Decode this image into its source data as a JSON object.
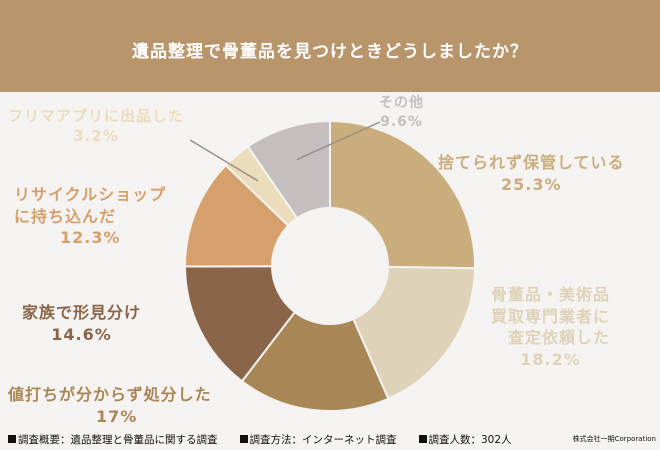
{
  "chart_data": {
    "type": "pie",
    "title": "遺品整理で骨董品を見つけときどうしましたか？",
    "slices": [
      {
        "label": "捨てられず保管している",
        "value": 25.3,
        "value_label": "25.3%",
        "color": "#c9ad7d"
      },
      {
        "label": "骨董品・美術品買取専門業者に査定依頼した",
        "value": 18.2,
        "value_label": "18.2%",
        "color": "#ded2b8"
      },
      {
        "label": "値打ちが分からず処分した",
        "value": 17,
        "value_label": "17%",
        "color": "#a98656"
      },
      {
        "label": "家族で形見分け",
        "value": 14.6,
        "value_label": "14.6%",
        "color": "#8b6549"
      },
      {
        "label": "リサイクルショップに持ち込んだ",
        "value": 12.3,
        "value_label": "12.3%",
        "color": "#d6a06c"
      },
      {
        "label": "フリマアプリに出品した",
        "value": 3.2,
        "value_label": "3.2%",
        "color": "#ebdcbb"
      },
      {
        "label": "その他",
        "value": 9.6,
        "value_label": "9.6%",
        "color": "#c4bebf"
      }
    ]
  },
  "labels": {
    "hold": {
      "l1": "捨てられず保管している",
      "pct": "25.3%"
    },
    "appraise": {
      "l1": "骨董品・美術品",
      "l2": "買取専門業者に",
      "l3": "査定依頼した",
      "pct": "18.2%"
    },
    "dispose": {
      "l1": "値打ちが分からず処分した",
      "pct": "17%"
    },
    "family": {
      "l1": "家族で形見分け",
      "pct": "14.6%"
    },
    "recycle": {
      "l1": "リサイクルショップ",
      "l2": "に持ち込んだ",
      "pct": "12.3%"
    },
    "flea": {
      "l1": "フリマアプリに出品した",
      "pct": "3.2%"
    },
    "other": {
      "l1": "その他",
      "pct": "9.6%"
    }
  },
  "footer": {
    "overview": "調査概要：遺品整理と骨董品に関する調査",
    "method": "調査方法：インターネット調査",
    "count": "調査人数：302人",
    "brand": "株式会社一期Corporation"
  },
  "colors": {
    "header": "#b8956a",
    "background": "#f5f3f1"
  }
}
